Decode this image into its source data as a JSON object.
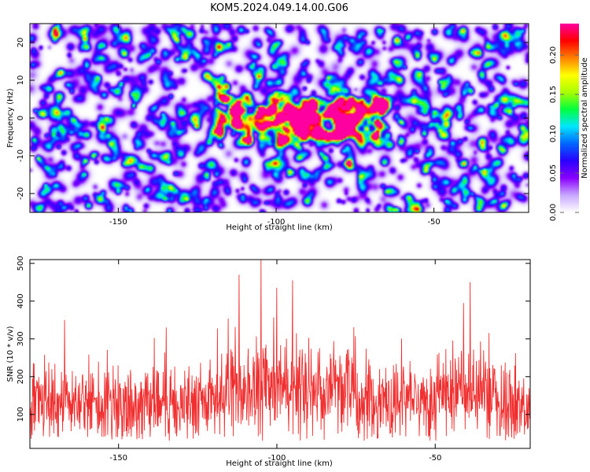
{
  "title": "KOM5.2024.049.14.00.G06",
  "chart_data": [
    {
      "type": "heatmap",
      "xlabel": "Height of straight line (km)",
      "ylabel": "Frequency (Hz)",
      "xlim": [
        -178,
        -20
      ],
      "ylim": [
        -25,
        25
      ],
      "x_ticks": [
        -150,
        -100,
        -50
      ],
      "y_ticks": [
        -20,
        -10,
        0,
        10,
        20
      ],
      "colorbar": {
        "label": "Normalized spectral amplitude",
        "range": [
          0.0,
          0.24
        ],
        "ticks": [
          0.0,
          0.05,
          0.1,
          0.15,
          0.2
        ],
        "tick_labels": [
          "0.00",
          "0.05",
          "0.10",
          "0.15",
          "0.20"
        ],
        "colormap": [
          "#ffffff",
          "#c8a8ff",
          "#8a00ff",
          "#2a00ff",
          "#0066ff",
          "#00e5ff",
          "#00ff40",
          "#a8ff00",
          "#ffff00",
          "#ff8000",
          "#ff0000",
          "#ff00a0"
        ]
      },
      "grid": false,
      "notable_peaks": [
        {
          "x": -105,
          "y": 2.5,
          "value": 0.24
        },
        {
          "x": -99,
          "y": 0.5,
          "value": 0.22
        },
        {
          "x": -112,
          "y": 4.5,
          "value": 0.14
        },
        {
          "x": -93,
          "y": -1.5,
          "value": 0.12
        },
        {
          "x": -62,
          "y": 21,
          "value": 0.12
        },
        {
          "x": -28,
          "y": -23,
          "value": 0.12
        },
        {
          "x": -50,
          "y": 23,
          "value": 0.11
        }
      ]
    },
    {
      "type": "line",
      "xlabel": "Height of straight line (km)",
      "ylabel": "SNR (10 * v/v)",
      "xlim": [
        -178,
        -20
      ],
      "ylim": [
        10,
        510
      ],
      "x_ticks": [
        -150,
        -100,
        -50
      ],
      "y_ticks": [
        100,
        200,
        300,
        400,
        500
      ],
      "series_color": "#f03030",
      "baseline_mean": 130,
      "notable_peaks": [
        {
          "x": -105,
          "y": 510
        },
        {
          "x": -112,
          "y": 470
        },
        {
          "x": -95,
          "y": 455
        },
        {
          "x": -100,
          "y": 435
        },
        {
          "x": -39,
          "y": 450
        },
        {
          "x": -41,
          "y": 395
        },
        {
          "x": -167,
          "y": 350
        },
        {
          "x": -135,
          "y": 330
        }
      ]
    }
  ]
}
